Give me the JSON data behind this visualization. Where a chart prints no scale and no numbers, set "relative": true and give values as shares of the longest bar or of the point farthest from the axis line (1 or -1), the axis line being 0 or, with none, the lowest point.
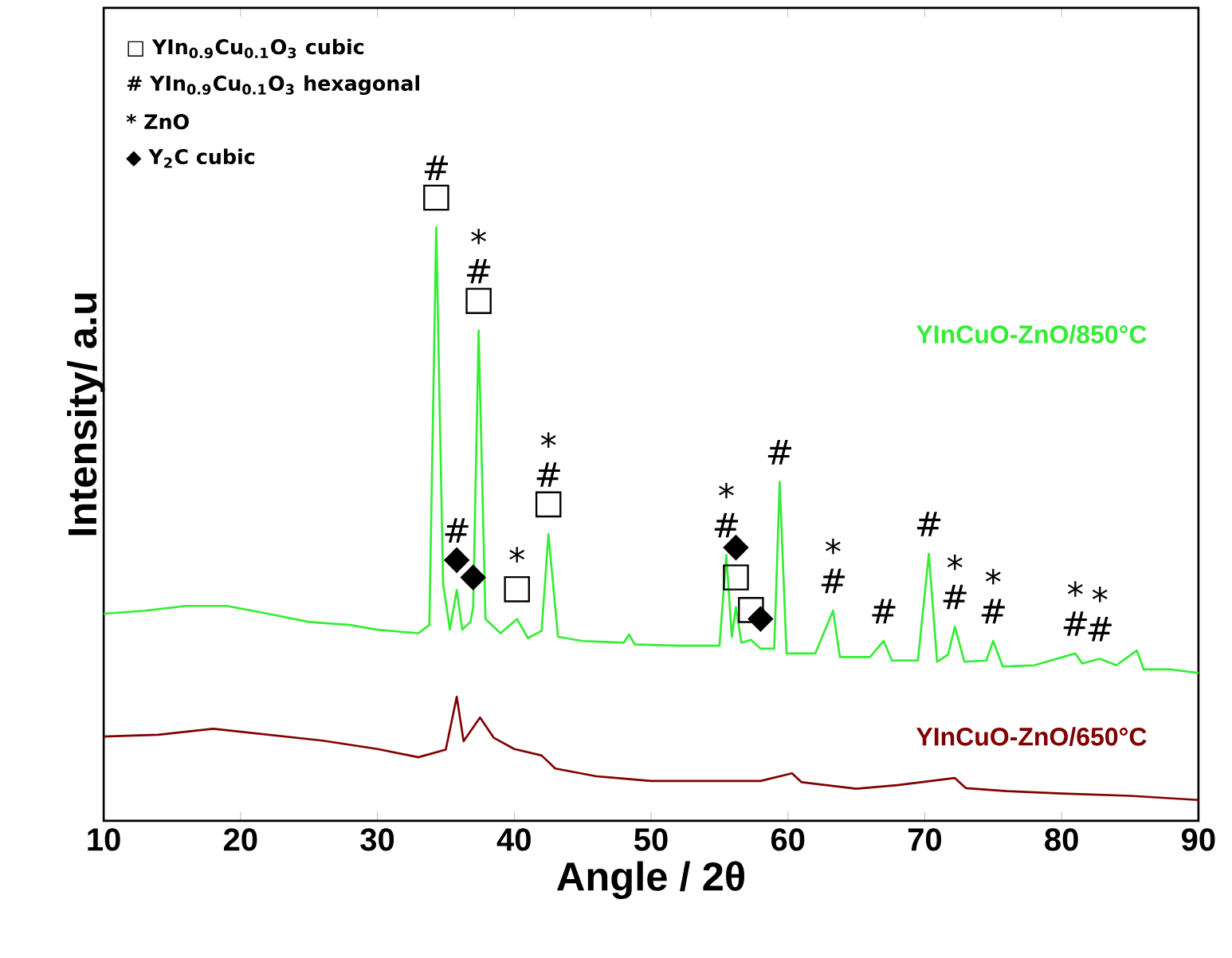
{
  "chart_data": {
    "type": "line",
    "relative": true,
    "xlabel": "Angle / 2θ",
    "ylabel": "Intensity/ a.u",
    "x": [
      10,
      13,
      16,
      19,
      22,
      25,
      28,
      30,
      33,
      33.8,
      34.3,
      34.8,
      35.3,
      35.8,
      36.2,
      36.8,
      37.0,
      37.4,
      37.9,
      39,
      40.2,
      41,
      42,
      42.5,
      43.2,
      45,
      48,
      48.4,
      48.8,
      52,
      55,
      55.5,
      55.9,
      56.2,
      56.6,
      57.3,
      58,
      59,
      59.4,
      59.9,
      62,
      63.3,
      63.8,
      66,
      67,
      67.6,
      69.5,
      70.3,
      70.9,
      71.7,
      72.2,
      72.9,
      74.5,
      75,
      75.7,
      78,
      81,
      81.5,
      82.8,
      84,
      85.5,
      86,
      88,
      90
    ],
    "xlim": [
      10,
      90
    ],
    "xticks": [
      10,
      20,
      30,
      40,
      50,
      60,
      70,
      80,
      90
    ],
    "tick_labels": "x",
    "grid": false,
    "series": [
      {
        "name": "YInCuO-ZnO/850°C",
        "color": "#33ee33",
        "values": [
          0.349,
          0.354,
          0.362,
          0.362,
          0.349,
          0.335,
          0.33,
          0.322,
          0.316,
          0.33,
          1.0,
          0.4,
          0.322,
          0.389,
          0.322,
          0.335,
          0.36,
          0.826,
          0.34,
          0.316,
          0.34,
          0.308,
          0.32,
          0.483,
          0.31,
          0.303,
          0.3,
          0.314,
          0.297,
          0.295,
          0.295,
          0.448,
          0.31,
          0.36,
          0.3,
          0.305,
          0.29,
          0.29,
          0.571,
          0.282,
          0.282,
          0.354,
          0.276,
          0.276,
          0.303,
          0.27,
          0.27,
          0.45,
          0.268,
          0.28,
          0.327,
          0.268,
          0.27,
          0.303,
          0.26,
          0.262,
          0.282,
          0.265,
          0.273,
          0.262,
          0.287,
          0.255,
          0.255,
          0.249
        ]
      },
      {
        "name": "YInCuO-ZnO/650°C",
        "color": "#800000",
        "x": [
          10,
          14,
          18,
          22,
          26,
          30,
          33,
          35,
          35.8,
          36.3,
          37.5,
          38.5,
          40,
          42,
          43,
          46,
          50,
          55,
          58,
          60.3,
          61,
          65,
          68,
          72.2,
          73,
          76,
          80,
          85,
          90
        ],
        "values": [
          0.142,
          0.145,
          0.155,
          0.145,
          0.135,
          0.121,
          0.107,
          0.12,
          0.209,
          0.134,
          0.174,
          0.14,
          0.121,
          0.11,
          0.088,
          0.075,
          0.067,
          0.067,
          0.067,
          0.08,
          0.065,
          0.054,
          0.06,
          0.072,
          0.055,
          0.05,
          0.046,
          0.042,
          0.035
        ]
      }
    ],
    "annotations": [
      "□ YIn$_{0.9}$Cu$_{0.1}$O$_{3}$ cubic",
      "# YIn$_{0.9}$Cu$_{0.1}$O$_{3}$ hexagonal",
      "* ZnO",
      "◆ Y$_{2}$C cubic",
      {
        "text": "□",
        "x": 34.3,
        "y": 1.0
      },
      {
        "text": "#",
        "x": 34.3,
        "y": 1.0
      },
      {
        "text": "□",
        "x": 37.4,
        "y": 0.826
      },
      {
        "text": "#",
        "x": 37.4,
        "y": 0.826
      },
      {
        "text": "*",
        "x": 37.4,
        "y": 0.826
      },
      {
        "text": "◆",
        "x": 35.8,
        "y": 0.389
      },
      {
        "text": "#",
        "x": 35.8,
        "y": 0.389
      },
      {
        "text": "◆",
        "x": 37.0,
        "y": 0.36
      },
      {
        "text": "□",
        "x": 40.2,
        "y": 0.34
      },
      {
        "text": "*",
        "x": 40.2,
        "y": 0.34
      },
      {
        "text": "□",
        "x": 42.5,
        "y": 0.483
      },
      {
        "text": "#",
        "x": 42.5,
        "y": 0.483
      },
      {
        "text": "*",
        "x": 42.5,
        "y": 0.483
      },
      {
        "text": "#",
        "x": 55.5,
        "y": 0.448
      },
      {
        "text": "*",
        "x": 55.5,
        "y": 0.448
      },
      {
        "text": "□",
        "x": 56.2,
        "y": 0.36
      },
      {
        "text": "◆",
        "x": 56.2,
        "y": 0.36
      },
      {
        "text": "□",
        "x": 57.3,
        "y": 0.305
      },
      {
        "text": "◆",
        "x": 58,
        "y": 0.29
      },
      {
        "text": "#",
        "x": 59.4,
        "y": 0.571
      },
      {
        "text": "#",
        "x": 63.3,
        "y": 0.354
      },
      {
        "text": "*",
        "x": 63.3,
        "y": 0.354
      },
      {
        "text": "#",
        "x": 67,
        "y": 0.303
      },
      {
        "text": "#",
        "x": 70.3,
        "y": 0.45
      },
      {
        "text": "#",
        "x": 72.2,
        "y": 0.327
      },
      {
        "text": "*",
        "x": 72.2,
        "y": 0.327
      },
      {
        "text": "#",
        "x": 75,
        "y": 0.303
      },
      {
        "text": "*",
        "x": 75,
        "y": 0.303
      },
      {
        "text": "#",
        "x": 81,
        "y": 0.282
      },
      {
        "text": "*",
        "x": 81,
        "y": 0.282
      },
      {
        "text": "#",
        "x": 82.8,
        "y": 0.273
      },
      {
        "text": "*",
        "x": 82.8,
        "y": 0.273
      }
    ]
  }
}
